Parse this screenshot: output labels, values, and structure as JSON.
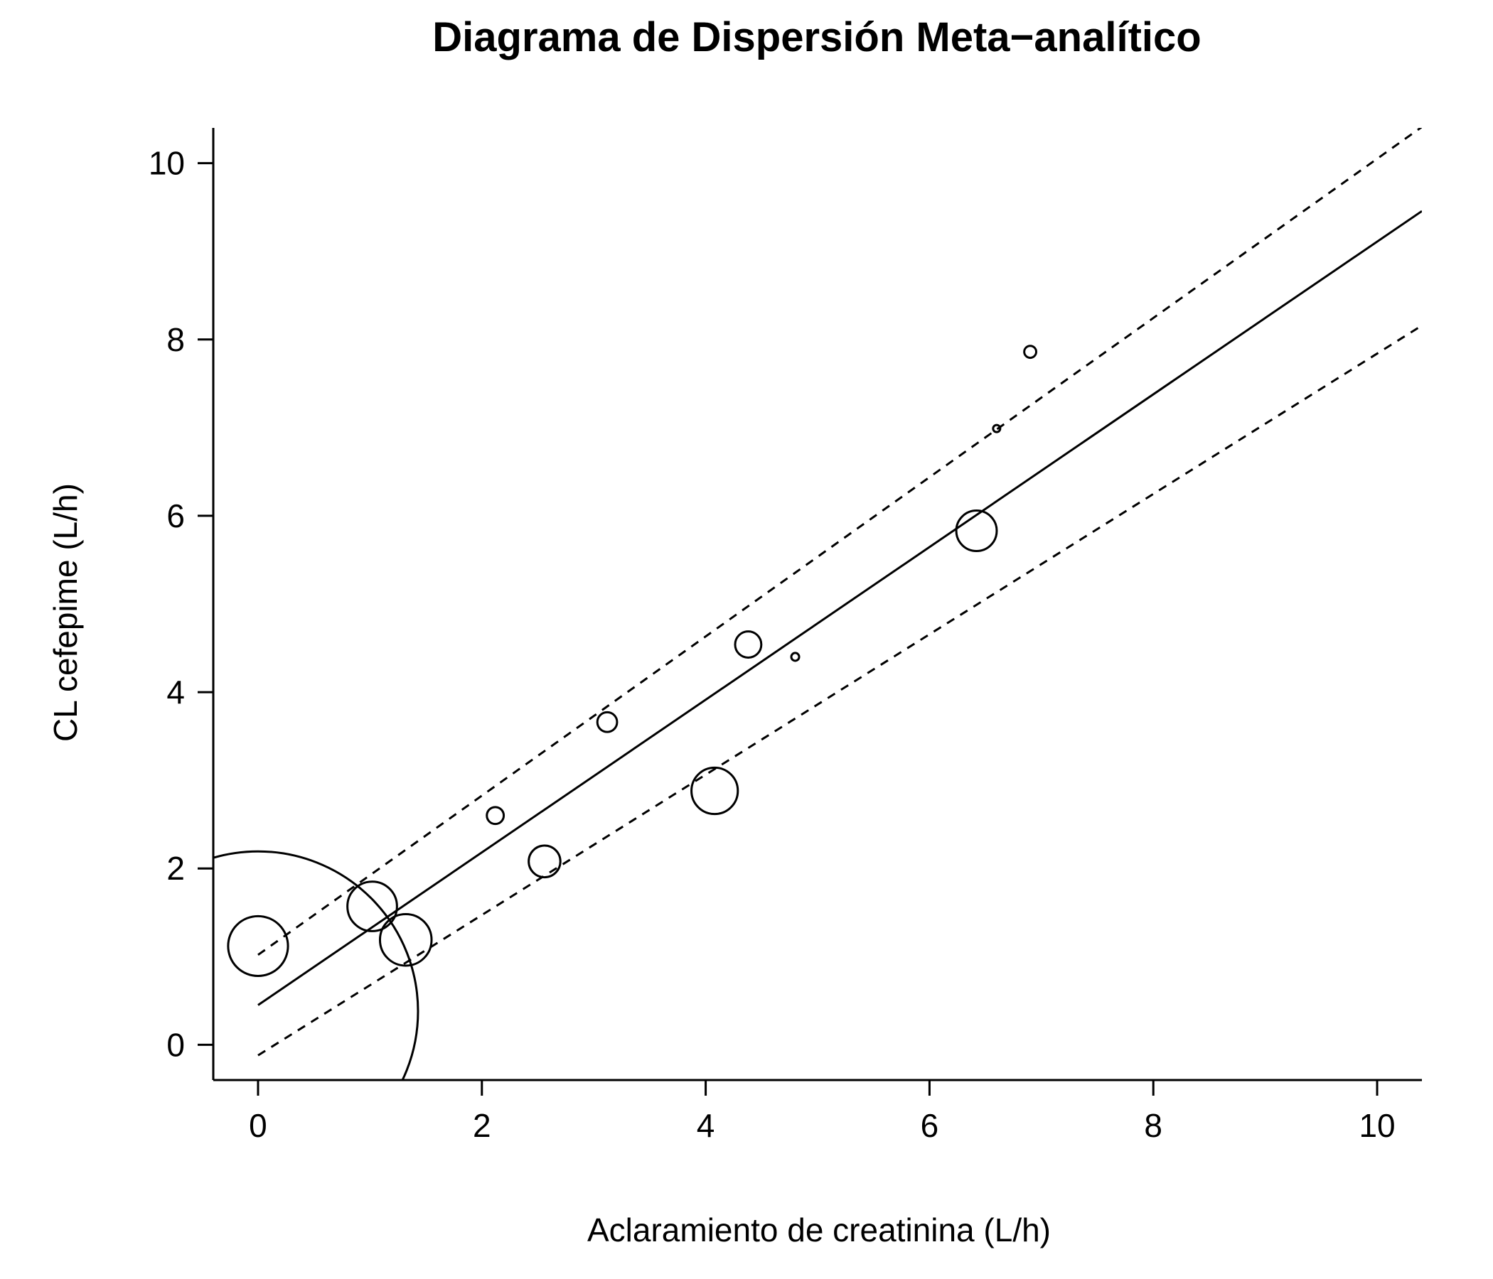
{
  "chart_data": {
    "type": "scatter",
    "title": "Diagrama de Dispersión Meta−analítico",
    "xlabel": "Aclaramiento de creatinina (L/h)",
    "ylabel": "CL cefepime (L/h)",
    "xlim": [
      -0.4,
      10.4
    ],
    "ylim": [
      -0.4,
      10.4
    ],
    "xticks": [
      0,
      2,
      4,
      6,
      8,
      10
    ],
    "yticks": [
      0,
      2,
      4,
      6,
      8,
      10
    ],
    "points": [
      {
        "x": 0.0,
        "y": 0.38,
        "weight": 1.0
      },
      {
        "x": 0.0,
        "y": 1.12,
        "weight": 0.035
      },
      {
        "x": 1.02,
        "y": 1.57,
        "weight": 0.024
      },
      {
        "x": 1.32,
        "y": 1.19,
        "weight": 0.026
      },
      {
        "x": 2.12,
        "y": 2.6,
        "weight": 0.0028
      },
      {
        "x": 2.56,
        "y": 2.08,
        "weight": 0.0098
      },
      {
        "x": 3.12,
        "y": 3.66,
        "weight": 0.0038
      },
      {
        "x": 4.08,
        "y": 2.88,
        "weight": 0.021
      },
      {
        "x": 4.38,
        "y": 4.54,
        "weight": 0.0067
      },
      {
        "x": 4.8,
        "y": 4.4,
        "weight": 0.0006
      },
      {
        "x": 6.42,
        "y": 5.83,
        "weight": 0.016
      },
      {
        "x": 6.6,
        "y": 6.99,
        "weight": 8e-05
      },
      {
        "x": 6.9,
        "y": 7.86,
        "weight": 0.0014
      }
    ],
    "fit_line": {
      "intercept": 0.45,
      "slope": 0.866
    },
    "ci_upper": {
      "intercept": 1.02,
      "slope": 0.903
    },
    "ci_lower": {
      "intercept": -0.12,
      "slope": 0.796
    },
    "grid": false,
    "legend": false
  }
}
